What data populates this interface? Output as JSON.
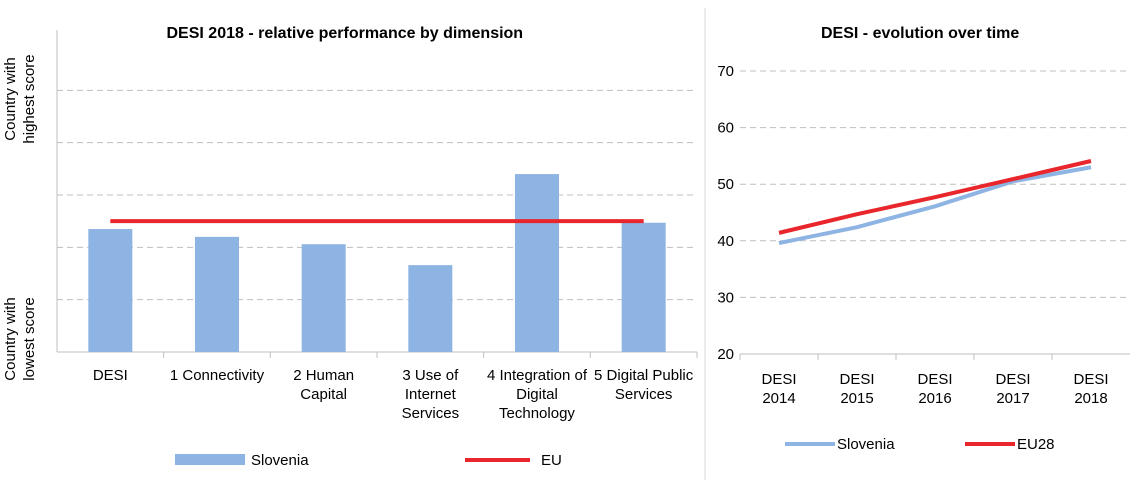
{
  "chart_data": [
    {
      "type": "bar",
      "title": "DESI 2018 -  relative performance by dimension",
      "y_top_label": "Country with highest score",
      "y_bottom_label": "Country with lowest score",
      "categories": [
        "DESI",
        "1 Connectivity",
        "2 Human Capital",
        "3 Use of Internet Services",
        "4 Integration of Digital Technology",
        "5 Digital Public Services"
      ],
      "series": [
        {
          "name": "Slovenia",
          "color": "#8eb4e3",
          "kind": "bar",
          "values": [
            2.35,
            2.2,
            2.06,
            1.66,
            3.4,
            2.47
          ]
        },
        {
          "name": "EU",
          "color": "#e8262b",
          "kind": "line",
          "values": [
            2.5,
            2.5,
            2.5,
            2.5,
            2.5,
            2.5
          ]
        }
      ],
      "ylim": [
        0,
        6
      ],
      "yticks": [
        1,
        2,
        3,
        4,
        5
      ],
      "grid": true,
      "legend": "bottom"
    },
    {
      "type": "line",
      "title": "DESI - evolution over time",
      "categories": [
        "DESI 2014",
        "DESI 2015",
        "DESI 2016",
        "DESI 2017",
        "DESI 2018"
      ],
      "series": [
        {
          "name": "Slovenia",
          "color": "#8eb4e3",
          "values": [
            39.6,
            42.4,
            46.1,
            50.5,
            53.0
          ]
        },
        {
          "name": "EU28",
          "color": "#e8262b",
          "values": [
            41.4,
            44.7,
            47.7,
            50.9,
            54.1
          ]
        }
      ],
      "ylim": [
        20,
        70
      ],
      "yticks": [
        20,
        30,
        40,
        50,
        60,
        70
      ],
      "grid": true,
      "legend": "bottom"
    }
  ]
}
